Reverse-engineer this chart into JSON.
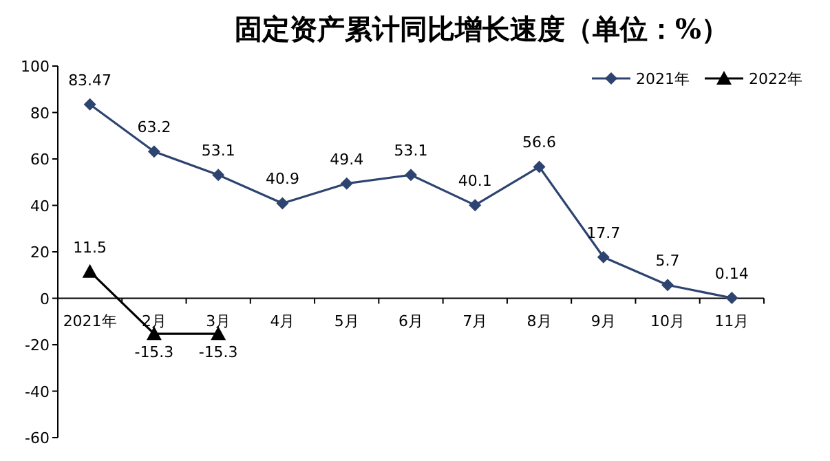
{
  "chart_data": {
    "type": "line",
    "title": "固定资产累计同比增长速度（单位：%）",
    "categories": [
      "2021年",
      "2月",
      "3月",
      "4月",
      "5月",
      "6月",
      "7月",
      "8月",
      "9月",
      "10月",
      "11月"
    ],
    "series": [
      {
        "name": "2021年",
        "color": "#2e4470",
        "marker": "diamond",
        "values": [
          83.47,
          63.2,
          53.1,
          40.9,
          49.4,
          53.1,
          40.1,
          56.6,
          17.7,
          5.7,
          0.14
        ]
      },
      {
        "name": "2022年",
        "color": "#000000",
        "marker": "triangle",
        "values": [
          11.5,
          -15.3,
          -15.3,
          null,
          null,
          null,
          null,
          null,
          null,
          null,
          null
        ]
      }
    ],
    "ylim": [
      -60,
      100
    ],
    "yticks": [
      -60,
      -40,
      -20,
      0,
      20,
      40,
      60,
      80,
      100
    ],
    "data_labels": true,
    "legend": "top right",
    "grid": false,
    "line_style": "solid"
  }
}
